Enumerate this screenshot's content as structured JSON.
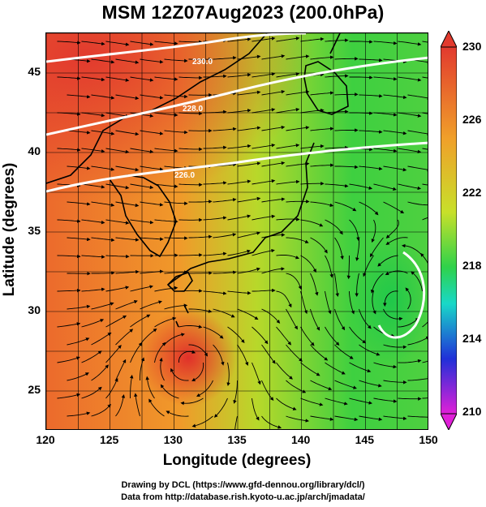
{
  "title": "MSM 12Z07Aug2023 (200.0hPa)",
  "x_axis": {
    "label": "Longitude (degrees)",
    "ticks": [
      "120",
      "125",
      "130",
      "135",
      "140",
      "145",
      "150"
    ],
    "range": [
      120,
      150
    ]
  },
  "y_axis": {
    "label": "Latitude  (degrees)",
    "ticks": [
      "25",
      "30",
      "35",
      "40",
      "45"
    ],
    "range": [
      22.5,
      47.5
    ]
  },
  "colorbar": {
    "ticks": [
      "230",
      "226",
      "222",
      "218",
      "214",
      "210"
    ],
    "range": [
      210,
      230
    ]
  },
  "contour_labels": [
    "230.0",
    "228.0",
    "226.0",
    "230.0"
  ],
  "credits": {
    "line1": "Drawing by DCL (https://www.gfd-dennou.org/library/dcl/)",
    "line2": "Data from http://database.rish.kyoto-u.ac.jp/arch/jmadata/"
  },
  "colors": {
    "warm": "#e04a2c",
    "mid": "#f0a52a",
    "yellow": "#d8e02a",
    "green": "#2fd24a",
    "cyan": "#18d8d8",
    "blue": "#2030d8",
    "magenta": "#e020d8"
  },
  "icons": [
    "streamline-arrow-icon",
    "colorbar-up-triangle",
    "colorbar-down-triangle"
  ]
}
